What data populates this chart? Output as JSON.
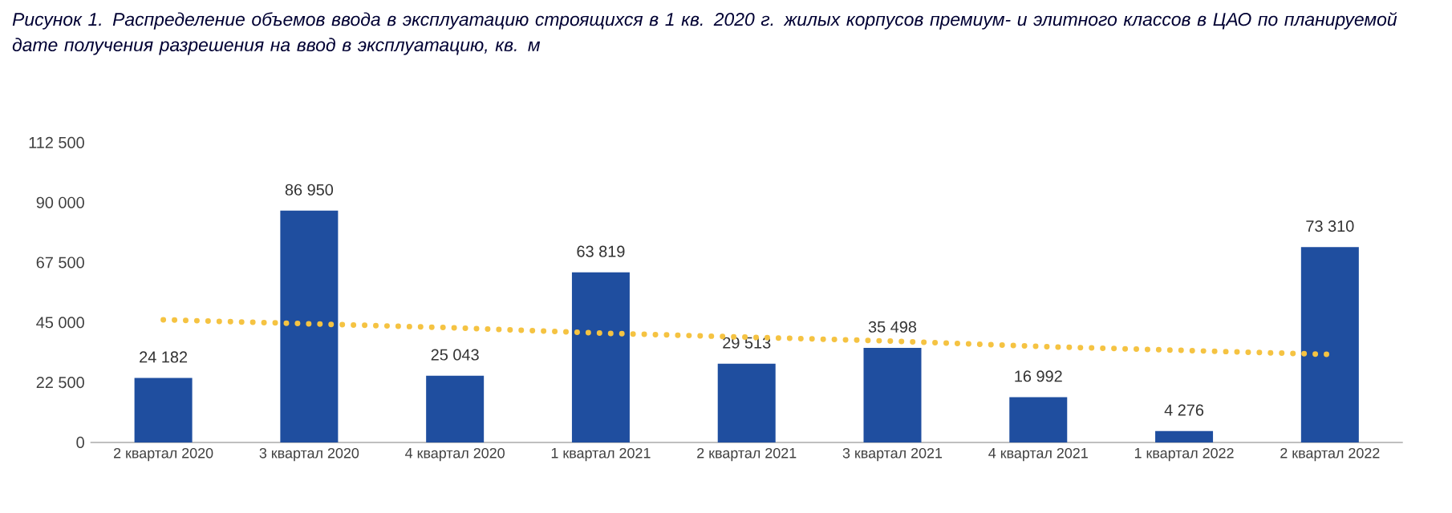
{
  "chart_data": {
    "type": "bar",
    "title": "Рисунок 1. Распределение объемов ввода в эксплуатацию строящихся в 1 кв. 2020 г. жилых корпусов премиум- и элитного классов в ЦАО по планируемой дате получения разрешения на ввод в эксплуатацию, кв. м",
    "categories": [
      "2 квартал 2020",
      "3 квартал 2020",
      "4 квартал 2020",
      "1 квартал 2021",
      "2 квартал 2021",
      "3 квартал 2021",
      "4 квартал 2021",
      "1 квартал 2022",
      "2 квартал 2022"
    ],
    "series": [
      {
        "color": "#1f4e9f",
        "values": [
          24182,
          86950,
          25043,
          63819,
          29513,
          35498,
          16992,
          4276,
          73310
        ],
        "value_labels": [
          "24 182",
          "86 950",
          "25 043",
          "63 819",
          "29 513",
          "35 498",
          "16 992",
          "4 276",
          "73 310"
        ]
      },
      {
        "type": "line",
        "color": "#f5c342",
        "line_style": "dotted",
        "values": [
          46000,
          44500,
          43000,
          41000,
          39500,
          38000,
          36000,
          34500,
          33000
        ]
      }
    ],
    "ylim": [
      0,
      112500
    ],
    "yticks": [
      0,
      {
        "value": 22500,
        "label": "22 500"
      },
      {
        "value": 45000,
        "label": "45 000"
      },
      {
        "value": 67500,
        "label": "67 500"
      },
      {
        "value": 90000,
        "label": "90 000"
      },
      {
        "value": 112500,
        "label": "112 500"
      }
    ],
    "grid": false
  }
}
